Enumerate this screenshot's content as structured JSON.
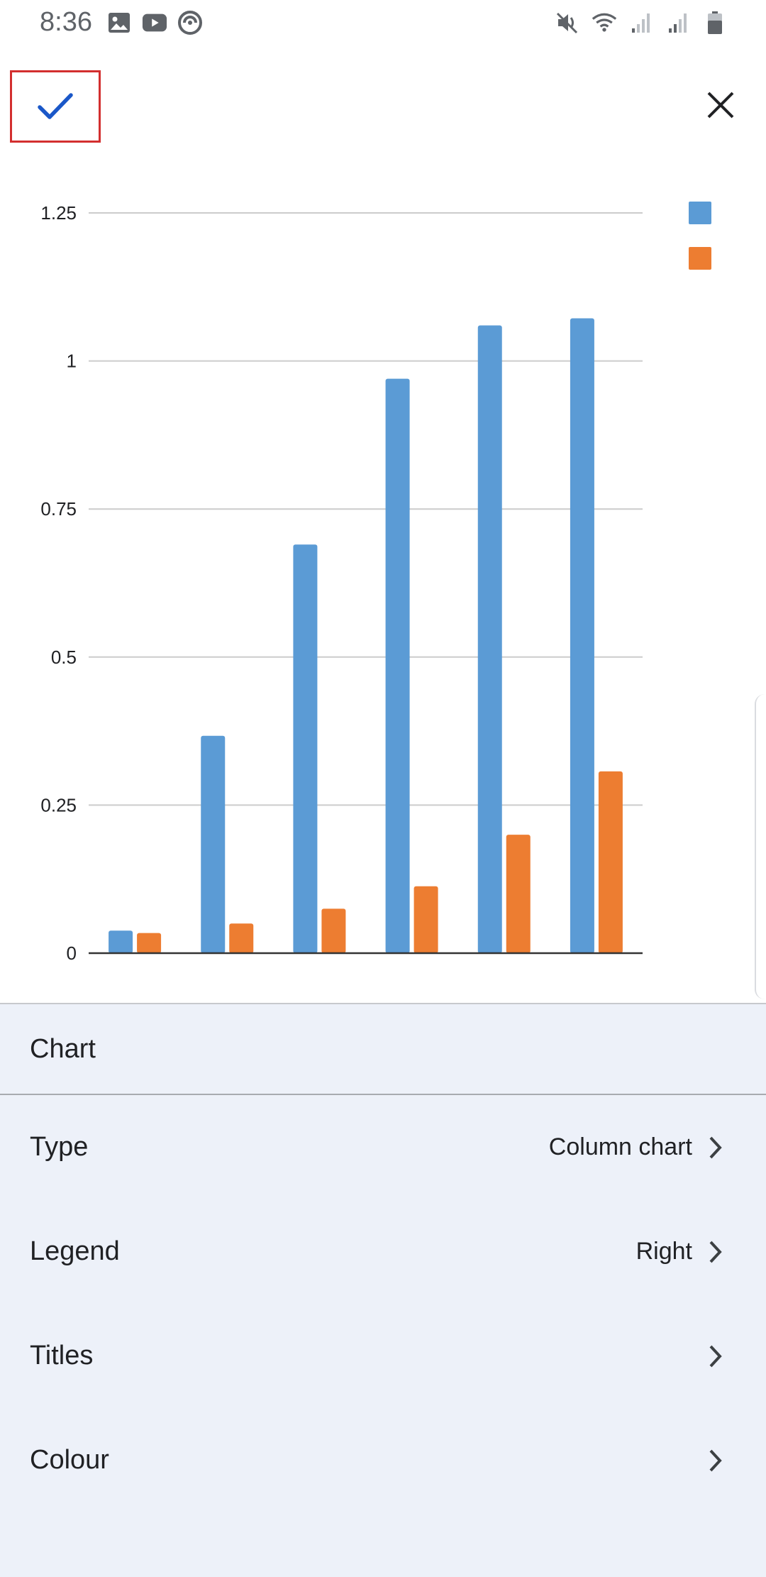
{
  "status_bar": {
    "time": "8:36",
    "left_icons": [
      "gallery-icon",
      "youtube-icon",
      "sync-app-icon"
    ],
    "right_icons": [
      "mute-icon",
      "wifi-icon",
      "signal-icon",
      "signal-icon",
      "battery-icon"
    ]
  },
  "toolbar": {
    "confirm_icon": "check-icon",
    "close_icon": "close-icon",
    "accent_color": "#1a57c8",
    "highlight_color": "#d32f2f"
  },
  "chart_data": {
    "type": "bar",
    "categories": [
      "",
      "",
      "",
      "",
      "",
      ""
    ],
    "series": [
      {
        "color": "#5b9bd5",
        "values": [
          0.038,
          0.367,
          0.69,
          0.97,
          1.06,
          1.072
        ]
      },
      {
        "color": "#ed7d31",
        "values": [
          0.034,
          0.05,
          0.075,
          0.113,
          0.2,
          0.307
        ]
      }
    ],
    "yticks": [
      "0",
      "0.25",
      "0.5",
      "0.75",
      "1",
      "1.25"
    ],
    "ylim": [
      0,
      1.25
    ],
    "grid": true,
    "legend": "right"
  },
  "settings": {
    "section_title": "Chart",
    "rows": [
      {
        "label": "Type",
        "value": "Column chart"
      },
      {
        "label": "Legend",
        "value": "Right"
      },
      {
        "label": "Titles",
        "value": ""
      },
      {
        "label": "Colour",
        "value": ""
      }
    ]
  }
}
